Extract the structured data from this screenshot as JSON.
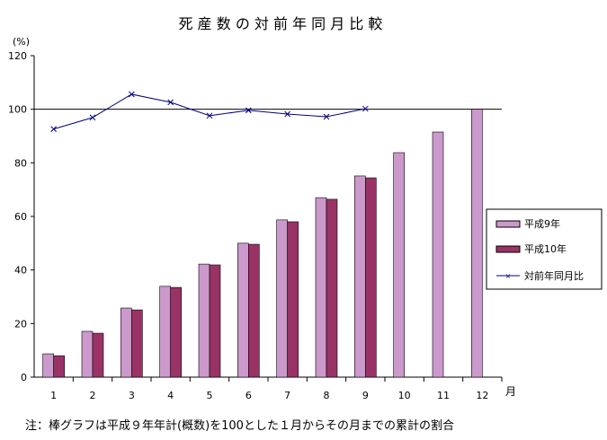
{
  "chart_data": {
    "type": "bar",
    "title": "死 産 数 の 対 前 年 同 月 比 較",
    "ylabel": "(%)",
    "xlabel": "月",
    "categories": [
      "1",
      "2",
      "3",
      "4",
      "5",
      "6",
      "7",
      "8",
      "9",
      "10",
      "11",
      "12"
    ],
    "ylim": [
      0,
      120
    ],
    "yticks": [
      "0",
      "20",
      "40",
      "60",
      "80",
      "100",
      "120"
    ],
    "reference_line": 100,
    "grid": false,
    "legend_placement": "right",
    "series": [
      {
        "name": "平成9年",
        "type": "bar",
        "color": "#cc99cc",
        "values": [
          8.7,
          17.1,
          25.8,
          33.9,
          42.2,
          50.0,
          58.7,
          67.0,
          75.1,
          83.8,
          91.5,
          100.0
        ]
      },
      {
        "name": "平成10年",
        "type": "bar",
        "color": "#993366",
        "values": [
          8.0,
          16.4,
          25.1,
          33.5,
          41.9,
          49.6,
          58.0,
          66.4,
          74.4,
          null,
          null,
          null
        ]
      },
      {
        "name": "対前年同月比",
        "type": "line",
        "color": "#000080",
        "marker": "x",
        "values": [
          92.6,
          96.9,
          105.6,
          102.6,
          97.6,
          99.6,
          98.2,
          97.2,
          100.2,
          null,
          null,
          null
        ]
      }
    ],
    "note": "注：棒グラフは平成９年年計(概数)を100とした１月からその月までの累計の割合"
  }
}
